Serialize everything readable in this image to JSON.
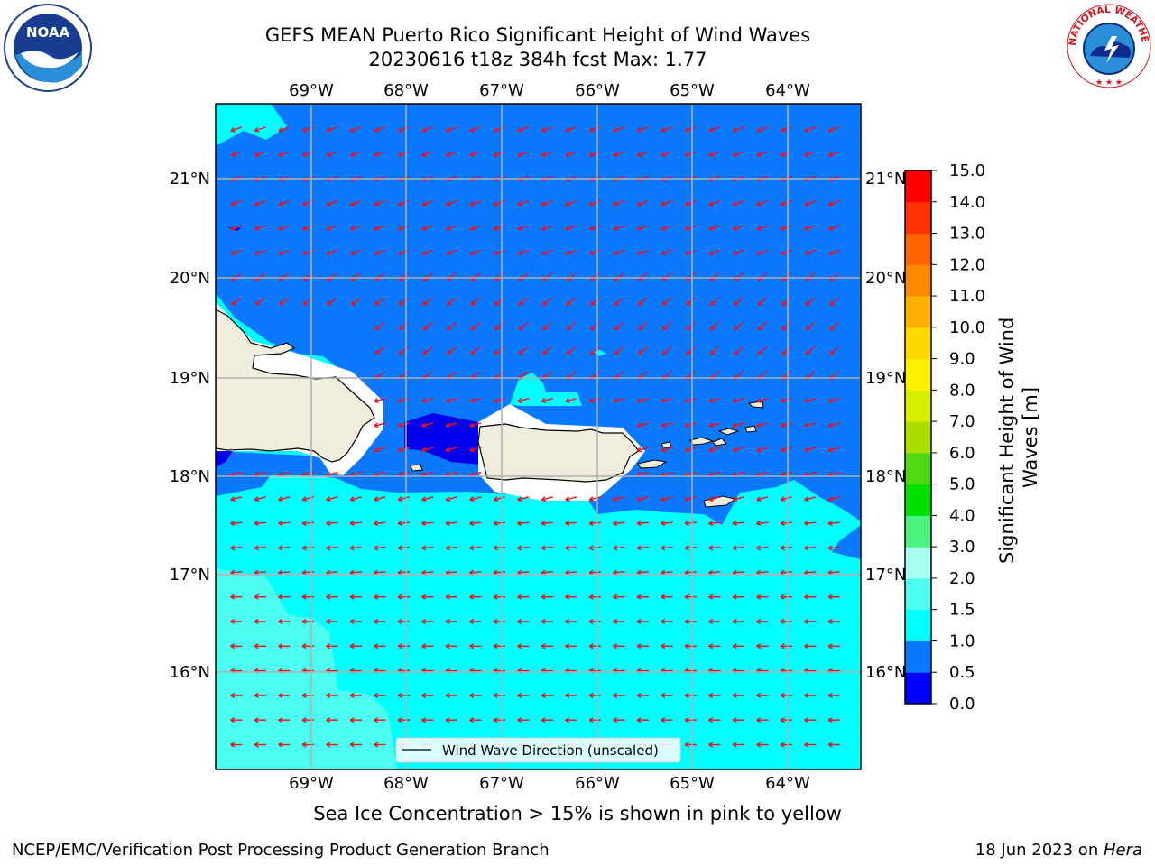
{
  "header": {
    "title_line1": "GEFS MEAN Puerto Rico Significant Height of Wind Waves",
    "title_line2": "20230616 t18z 384h fcst   Max: 1.77"
  },
  "map": {
    "lon_labels": [
      "69°W",
      "68°W",
      "67°W",
      "66°W",
      "65°W",
      "64°W"
    ],
    "lat_labels": [
      "21°N",
      "20°N",
      "19°N",
      "18°N",
      "17°N",
      "16°N"
    ],
    "legend_label": "Wind Wave Direction (unscaled)",
    "arrow_color": "#e8141c",
    "land_color": "#efeedd"
  },
  "colorbar": {
    "label_line1": "Significant Height of Wind",
    "label_line2": "Waves [m]",
    "ticks": [
      "0.0",
      "0.5",
      "1.0",
      "1.5",
      "2.0",
      "3.0",
      "4.0",
      "5.0",
      "6.0",
      "7.0",
      "8.0",
      "9.0",
      "10.0",
      "11.0",
      "12.0",
      "13.0",
      "14.0",
      "15.0"
    ],
    "colors": [
      "#0000ff",
      "#0a78ff",
      "#00ffff",
      "#4cfff0",
      "#a6fff0",
      "#4cf280",
      "#00e000",
      "#50d810",
      "#aadd00",
      "#d8ee00",
      "#fff000",
      "#ffd800",
      "#ffb000",
      "#ff8a00",
      "#ff6400",
      "#ff3200",
      "#ff0000"
    ]
  },
  "footer": {
    "note": "Sea Ice Concentration > 15% is shown in pink to yellow",
    "left": "NCEP/EMC/Verification Post Processing Product Generation Branch",
    "date": "18 Jun 2023 on ",
    "host": "Hera"
  },
  "logos": {
    "noaa_text": "NOAA",
    "nws_text": "NATIONAL WEATHER SERVICE"
  }
}
